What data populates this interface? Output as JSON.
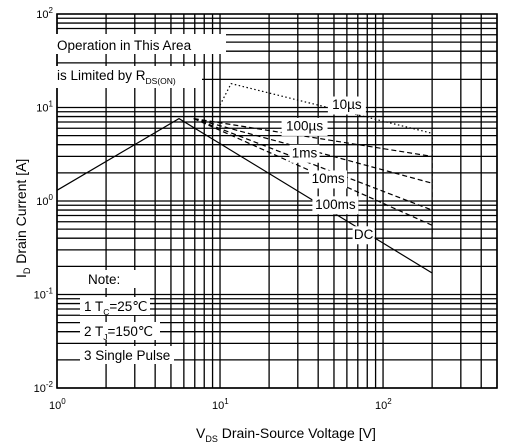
{
  "chart_data": {
    "type": "line",
    "title": "",
    "x_scale": "log",
    "y_scale": "log",
    "xlim": [
      1,
      500
    ],
    "ylim": [
      0.01,
      100
    ],
    "xlabel": {
      "prefix": "V",
      "sub": "DS",
      "text": " Drain-Source Voltage [V]"
    },
    "ylabel": {
      "prefix": "I",
      "sub": "D",
      "text": " Drain Current [A]"
    },
    "x_ticks": [
      {
        "base": "10",
        "exp": "0"
      },
      {
        "base": "10",
        "exp": "1"
      },
      {
        "base": "10",
        "exp": "2"
      }
    ],
    "y_ticks": [
      {
        "base": "10",
        "exp": "-2"
      },
      {
        "base": "10",
        "exp": "-1"
      },
      {
        "base": "10",
        "exp": "0"
      },
      {
        "base": "10",
        "exp": "1"
      },
      {
        "base": "10",
        "exp": "2"
      }
    ],
    "grid": true,
    "series": [
      {
        "name": "10µs",
        "style": "dotted",
        "x": [
          10,
          11.7,
          200,
          200
        ],
        "y": [
          10.6,
          18,
          5.3,
          3.0
        ]
      },
      {
        "name": "100µs",
        "style": "dashed",
        "x": [
          6.9,
          200,
          200
        ],
        "y": [
          7.6,
          3.0,
          1.55
        ]
      },
      {
        "name": "1ms",
        "style": "dashed",
        "x": [
          6.9,
          200,
          200
        ],
        "y": [
          7.6,
          1.55,
          0.8
        ]
      },
      {
        "name": "10ms",
        "style": "dashed",
        "x": [
          6.9,
          200,
          200
        ],
        "y": [
          7.6,
          0.8,
          0.55
        ]
      },
      {
        "name": "100ms",
        "style": "dashed",
        "x": [
          6.9,
          200,
          200
        ],
        "y": [
          7.6,
          0.55,
          0.42
        ]
      },
      {
        "name": "DC",
        "style": "solid",
        "x": [
          1,
          5.6,
          200
        ],
        "y": [
          1.3,
          7.6,
          0.17
        ]
      }
    ],
    "curve_labels": [
      {
        "text": "10µs",
        "x": 60,
        "y": 10.5
      },
      {
        "text": "100µs",
        "x": 33,
        "y": 6.2
      },
      {
        "text": "1ms",
        "x": 33,
        "y": 3.2
      },
      {
        "text": "10ms",
        "x": 46,
        "y": 1.7
      },
      {
        "text": "100ms",
        "x": 51,
        "y": 0.9
      },
      {
        "text": "DC",
        "x": 76,
        "y": 0.43
      }
    ],
    "annotations": {
      "limit_line1": "Operation in This Area",
      "limit_line2_prefix": "is Limited by R",
      "limit_line2_sub": "DS(ON)",
      "note_title": "Note:",
      "note1_prefix": "1 T",
      "note1_sub": "C",
      "note1_suffix": "=25℃",
      "note2_prefix": "2 T",
      "note2_sub": "J",
      "note2_suffix": "=150℃",
      "note3": "3 Single Pulse"
    }
  }
}
